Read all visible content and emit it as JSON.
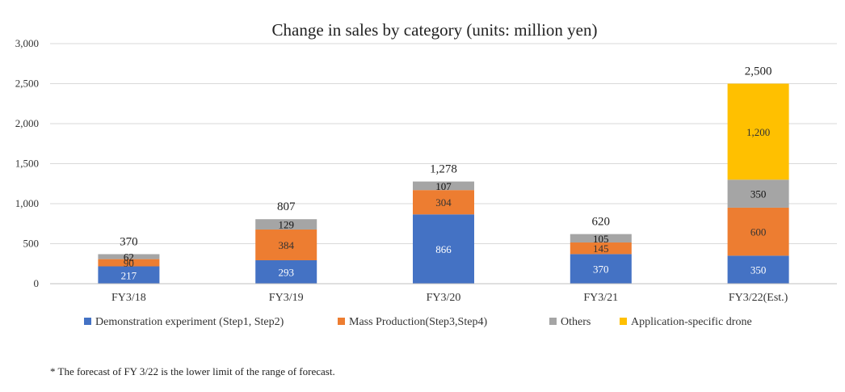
{
  "chart_data": {
    "type": "bar",
    "stacked": true,
    "title": "Change in sales by category (units: million yen)",
    "xlabel": "",
    "ylabel": "",
    "ylim": [
      0,
      3000
    ],
    "yticks": [
      0,
      500,
      1000,
      1500,
      2000,
      2500,
      3000
    ],
    "ytick_labels": [
      "0",
      "500",
      "1,000",
      "1,500",
      "2,000",
      "2,500",
      "3,000"
    ],
    "grid": true,
    "legend_position": "bottom",
    "categories": [
      "FY3/18",
      "FY3/19",
      "FY3/20",
      "FY3/21",
      "FY3/22(Est.)"
    ],
    "totals": [
      370,
      807,
      1278,
      620,
      2500
    ],
    "total_labels": [
      "370",
      "807",
      "1,278",
      "620",
      "2,500"
    ],
    "series": [
      {
        "name": "Demonstration experiment (Step1, Step2)",
        "color": "#4472C4",
        "label_color": "#ffffff",
        "values": [
          217,
          293,
          866,
          370,
          350
        ],
        "labels": [
          "217",
          "293",
          "866",
          "370",
          "350"
        ]
      },
      {
        "name": "Mass Production(Step3,Step4)",
        "color": "#ED7D31",
        "label_color": "#333333",
        "values": [
          90,
          384,
          304,
          145,
          600
        ],
        "labels": [
          "90",
          "384",
          "304",
          "145",
          "600"
        ]
      },
      {
        "name": "Others",
        "color": "#A5A5A5",
        "label_color": "#111111",
        "values": [
          62,
          129,
          107,
          105,
          350
        ],
        "labels": [
          "62",
          "129",
          "107",
          "105",
          "350"
        ]
      },
      {
        "name": "Application-specific drone",
        "color": "#FFC000",
        "label_color": "#333333",
        "values": [
          0,
          0,
          0,
          0,
          1200
        ],
        "labels": [
          "",
          "",
          "",
          "",
          "1,200"
        ]
      }
    ]
  },
  "footnote": "* The forecast of FY 3/22 is the lower limit of the range of forecast."
}
